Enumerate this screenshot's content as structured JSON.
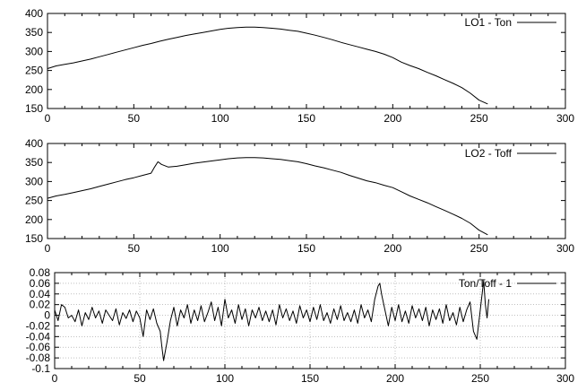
{
  "chart_data": [
    {
      "type": "line",
      "title": "",
      "xlabel": "",
      "ylabel": "",
      "xlim": [
        0,
        300
      ],
      "ylim": [
        150,
        400
      ],
      "xticks": [
        0,
        50,
        100,
        150,
        200,
        250,
        300
      ],
      "yticks": [
        150,
        200,
        250,
        300,
        350,
        400
      ],
      "grid": false,
      "legend_position": "top-right",
      "series": [
        {
          "name": "LO1 - Ton",
          "color": "#000000",
          "x": [
            0,
            5,
            10,
            15,
            20,
            25,
            30,
            35,
            40,
            45,
            50,
            55,
            60,
            65,
            70,
            75,
            80,
            85,
            90,
            95,
            100,
            105,
            110,
            115,
            120,
            125,
            130,
            135,
            140,
            145,
            150,
            155,
            160,
            165,
            170,
            175,
            180,
            185,
            190,
            195,
            200,
            205,
            210,
            215,
            220,
            225,
            230,
            235,
            240,
            245,
            250,
            255
          ],
          "y": [
            255,
            262,
            266,
            270,
            275,
            280,
            286,
            292,
            298,
            304,
            310,
            316,
            321,
            327,
            332,
            337,
            342,
            346,
            350,
            354,
            358,
            361,
            363,
            364,
            364,
            363,
            361,
            359,
            356,
            353,
            348,
            343,
            337,
            331,
            324,
            318,
            312,
            306,
            300,
            293,
            284,
            272,
            263,
            255,
            245,
            236,
            226,
            216,
            205,
            190,
            172,
            162
          ]
        }
      ]
    },
    {
      "type": "line",
      "title": "",
      "xlabel": "",
      "ylabel": "",
      "xlim": [
        0,
        300
      ],
      "ylim": [
        150,
        400
      ],
      "xticks": [
        0,
        50,
        100,
        150,
        200,
        250,
        300
      ],
      "yticks": [
        150,
        200,
        250,
        300,
        350,
        400
      ],
      "grid": false,
      "legend_position": "top-right",
      "series": [
        {
          "name": "LO2 - Toff",
          "color": "#000000",
          "x": [
            0,
            5,
            10,
            15,
            20,
            25,
            30,
            35,
            40,
            45,
            50,
            55,
            60,
            62,
            64,
            66,
            70,
            75,
            80,
            85,
            90,
            95,
            100,
            105,
            110,
            115,
            120,
            125,
            130,
            135,
            140,
            145,
            150,
            155,
            160,
            165,
            170,
            175,
            180,
            185,
            190,
            195,
            200,
            205,
            210,
            215,
            220,
            225,
            230,
            235,
            240,
            245,
            250,
            255
          ],
          "y": [
            256,
            262,
            266,
            271,
            276,
            281,
            287,
            293,
            299,
            305,
            310,
            316,
            322,
            338,
            352,
            345,
            338,
            340,
            344,
            348,
            351,
            354,
            357,
            360,
            362,
            363,
            363,
            362,
            360,
            358,
            355,
            352,
            347,
            341,
            336,
            330,
            324,
            316,
            309,
            302,
            297,
            290,
            284,
            273,
            262,
            253,
            244,
            234,
            224,
            214,
            203,
            190,
            172,
            160
          ]
        }
      ]
    },
    {
      "type": "line",
      "title": "",
      "xlabel": "",
      "ylabel": "",
      "xlim": [
        0,
        300
      ],
      "ylim": [
        -0.1,
        0.08
      ],
      "xticks": [
        0,
        50,
        100,
        150,
        200,
        250,
        300
      ],
      "yticks": [
        -0.1,
        -0.08,
        -0.06,
        -0.04,
        -0.02,
        0,
        0.02,
        0.04,
        0.06,
        0.08
      ],
      "ytick_labels": [
        "-0.1",
        "-0.08",
        "-0.06",
        "-0.04",
        "-0.02",
        "0",
        "0.02",
        "0.04",
        "0.06",
        "0.08"
      ],
      "grid": true,
      "legend_position": "top-right",
      "series": [
        {
          "name": "Ton/Toff - 1",
          "color": "#000000",
          "x": [
            0,
            2,
            4,
            6,
            8,
            10,
            12,
            14,
            16,
            18,
            20,
            22,
            24,
            26,
            28,
            30,
            32,
            34,
            36,
            38,
            40,
            42,
            44,
            46,
            48,
            50,
            52,
            54,
            56,
            58,
            60,
            62,
            63,
            64,
            66,
            68,
            70,
            72,
            74,
            76,
            78,
            80,
            82,
            84,
            86,
            88,
            90,
            92,
            94,
            96,
            98,
            100,
            102,
            104,
            106,
            108,
            110,
            112,
            114,
            116,
            118,
            120,
            122,
            124,
            126,
            128,
            130,
            132,
            134,
            136,
            138,
            140,
            142,
            144,
            146,
            148,
            150,
            152,
            154,
            156,
            158,
            160,
            162,
            164,
            166,
            168,
            170,
            172,
            174,
            176,
            178,
            180,
            182,
            184,
            186,
            188,
            190,
            191,
            192,
            194,
            196,
            198,
            200,
            202,
            204,
            206,
            208,
            210,
            212,
            214,
            216,
            218,
            220,
            222,
            224,
            226,
            228,
            230,
            232,
            234,
            236,
            238,
            240,
            242,
            244,
            246,
            248,
            250,
            252,
            253,
            254,
            255
          ],
          "y": [
            0.01,
            -0.01,
            0.02,
            0.015,
            -0.005,
            0.0,
            -0.012,
            0.01,
            -0.02,
            0.005,
            -0.008,
            0.015,
            -0.005,
            0.008,
            -0.015,
            0.01,
            0.0,
            -0.01,
            0.012,
            -0.018,
            0.005,
            -0.006,
            0.01,
            -0.012,
            0.008,
            -0.005,
            -0.04,
            0.01,
            -0.008,
            0.012,
            -0.015,
            -0.03,
            -0.06,
            -0.085,
            -0.05,
            -0.01,
            0.015,
            -0.02,
            0.01,
            -0.005,
            0.02,
            -0.015,
            0.01,
            -0.01,
            0.018,
            -0.012,
            0.005,
            0.025,
            -0.01,
            0.015,
            -0.02,
            0.03,
            -0.005,
            0.01,
            -0.015,
            0.02,
            -0.008,
            0.012,
            -0.02,
            0.01,
            -0.005,
            0.015,
            -0.01,
            0.008,
            -0.012,
            0.01,
            -0.018,
            0.02,
            -0.005,
            0.012,
            -0.01,
            0.008,
            -0.015,
            0.018,
            -0.005,
            0.01,
            -0.012,
            0.015,
            -0.008,
            0.02,
            -0.01,
            0.005,
            -0.015,
            0.012,
            -0.008,
            0.018,
            -0.01,
            0.005,
            -0.012,
            0.01,
            -0.015,
            0.02,
            -0.005,
            0.01,
            -0.012,
            0.03,
            0.055,
            0.06,
            0.04,
            0.01,
            -0.02,
            0.015,
            -0.01,
            0.02,
            -0.012,
            0.008,
            -0.015,
            0.018,
            -0.005,
            0.012,
            -0.01,
            0.015,
            -0.02,
            0.01,
            -0.008,
            0.012,
            -0.015,
            0.02,
            -0.01,
            0.005,
            -0.018,
            0.015,
            -0.012,
            0.01,
            0.025,
            -0.03,
            -0.045,
            0.01,
            0.065,
            0.02,
            -0.005,
            0.03
          ]
        }
      ]
    }
  ]
}
